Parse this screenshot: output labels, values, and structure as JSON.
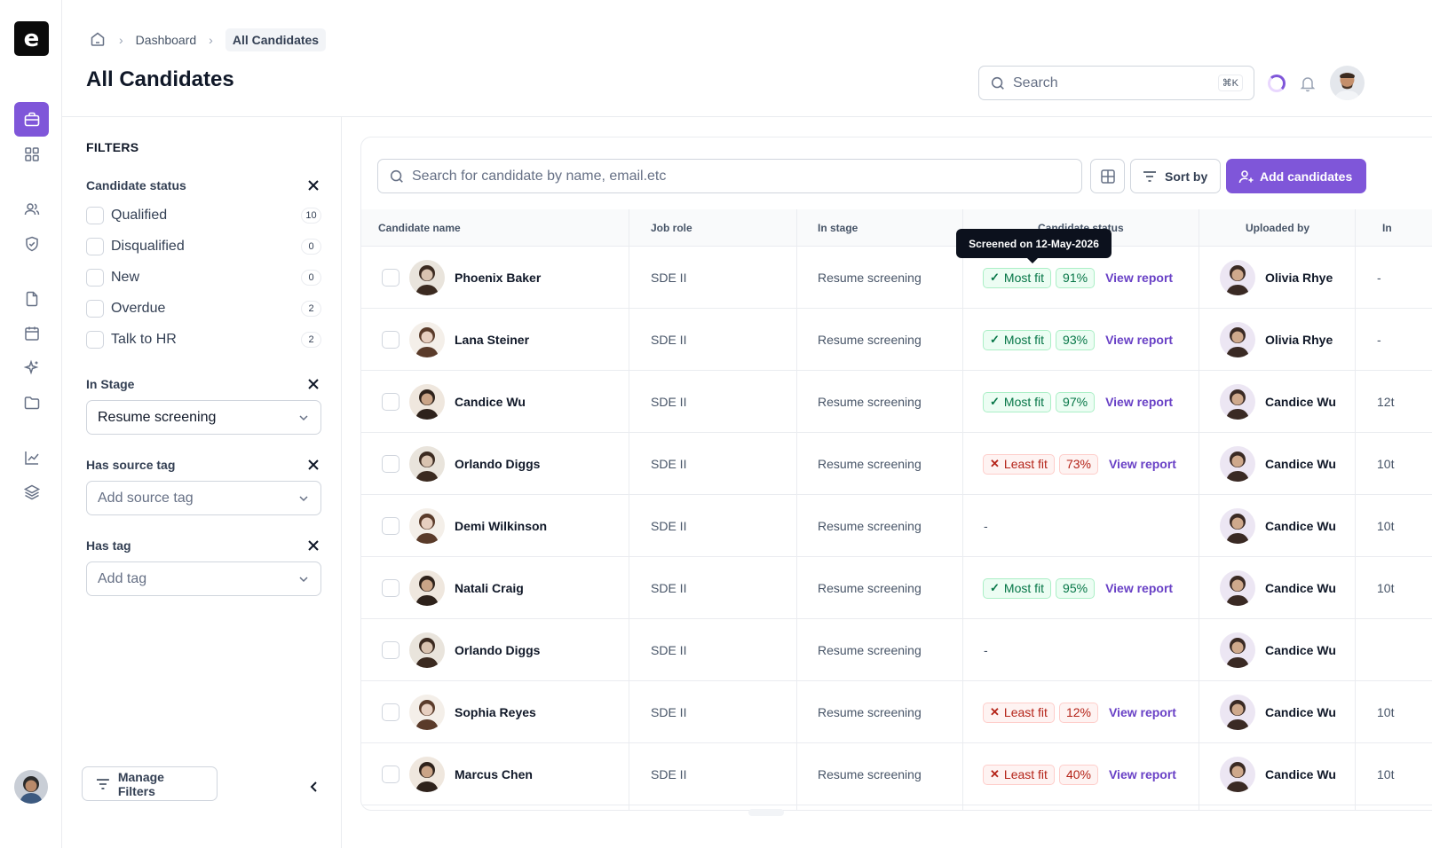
{
  "app": {
    "logo_letter": "e",
    "accent_color": "#7f56d9"
  },
  "rail": {
    "items": [
      {
        "icon": "briefcase-icon",
        "active": true
      },
      {
        "icon": "grid-icon",
        "active": false
      },
      {
        "icon": "users-icon",
        "active": false
      },
      {
        "icon": "shield-check-icon",
        "active": false
      },
      {
        "icon": "file-icon",
        "active": false
      },
      {
        "icon": "calendar-icon",
        "active": false
      },
      {
        "icon": "sparkle-icon",
        "active": false
      },
      {
        "icon": "folder-icon",
        "active": false
      },
      {
        "icon": "chart-line-icon",
        "active": false
      },
      {
        "icon": "layers-icon",
        "active": false
      }
    ]
  },
  "header": {
    "breadcrumb": {
      "home_icon": "home-icon",
      "items": [
        "Dashboard",
        "All Candidates"
      ]
    },
    "title": "All Candidates",
    "search": {
      "placeholder": "Search",
      "shortcut": "⌘K"
    }
  },
  "filters": {
    "title": "FILTERS",
    "candidate_status": {
      "title": "Candidate status",
      "options": [
        {
          "label": "Qualified",
          "count": "10"
        },
        {
          "label": "Disqualified",
          "count": "0"
        },
        {
          "label": "New",
          "count": "0"
        },
        {
          "label": "Overdue",
          "count": "2"
        },
        {
          "label": "Talk to HR",
          "count": "2"
        }
      ]
    },
    "in_stage": {
      "title": "In Stage",
      "value": "Resume screening"
    },
    "source_tag": {
      "title": "Has source tag",
      "placeholder": "Add source tag"
    },
    "tag": {
      "title": "Has tag",
      "placeholder": "Add tag"
    },
    "manage_label": "Manage Filters"
  },
  "toolbar": {
    "search_placeholder": "Search for candidate by name, email.etc",
    "sort_label": "Sort by",
    "add_label": "Add candidates"
  },
  "table": {
    "columns": [
      "Candidate name",
      "Job role",
      "In stage",
      "Candidate status",
      "Uploaded by",
      "In"
    ],
    "tooltip": "Screened on 12-May-2026",
    "view_report_label": "View report",
    "rows": [
      {
        "name": "Phoenix Baker",
        "role": "SDE II",
        "stage": "Resume screening",
        "fit": "Most fit",
        "fit_type": "good",
        "score": "91%",
        "uploader": "Olivia Rhye",
        "extra": "-"
      },
      {
        "name": "Lana Steiner",
        "role": "SDE II",
        "stage": "Resume screening",
        "fit": "Most fit",
        "fit_type": "good",
        "score": "93%",
        "uploader": "Olivia Rhye",
        "extra": "-"
      },
      {
        "name": "Candice Wu",
        "role": "SDE II",
        "stage": "Resume screening",
        "fit": "Most fit",
        "fit_type": "good",
        "score": "97%",
        "uploader": "Candice Wu",
        "extra": "12t"
      },
      {
        "name": "Orlando Diggs",
        "role": "SDE II",
        "stage": "Resume screening",
        "fit": "Least fit",
        "fit_type": "bad",
        "score": "73%",
        "uploader": "Candice Wu",
        "extra": "10t"
      },
      {
        "name": "Demi Wilkinson",
        "role": "SDE II",
        "stage": "Resume screening",
        "fit": "-",
        "fit_type": "none",
        "score": "",
        "uploader": "Candice Wu",
        "extra": "10t"
      },
      {
        "name": "Natali Craig",
        "role": "SDE II",
        "stage": "Resume screening",
        "fit": "Most fit",
        "fit_type": "good",
        "score": "95%",
        "uploader": "Candice Wu",
        "extra": "10t"
      },
      {
        "name": "Orlando Diggs",
        "role": "SDE II",
        "stage": "Resume screening",
        "fit": "-",
        "fit_type": "none",
        "score": "",
        "uploader": "Candice Wu",
        "extra": ""
      },
      {
        "name": "Sophia Reyes",
        "role": "SDE II",
        "stage": "Resume screening",
        "fit": "Least fit",
        "fit_type": "bad",
        "score": "12%",
        "uploader": "Candice Wu",
        "extra": "10t"
      },
      {
        "name": "Marcus Chen",
        "role": "SDE II",
        "stage": "Resume screening",
        "fit": "Least fit",
        "fit_type": "bad",
        "score": "40%",
        "uploader": "Candice Wu",
        "extra": "10t"
      }
    ]
  }
}
